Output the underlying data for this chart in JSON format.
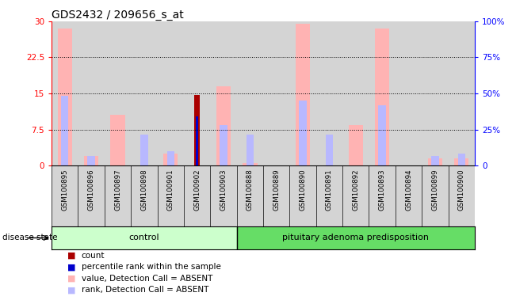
{
  "title": "GDS2432 / 209656_s_at",
  "samples": [
    "GSM100895",
    "GSM100896",
    "GSM100897",
    "GSM100898",
    "GSM100901",
    "GSM100902",
    "GSM100903",
    "GSM100888",
    "GSM100889",
    "GSM100890",
    "GSM100891",
    "GSM100892",
    "GSM100893",
    "GSM100894",
    "GSM100899",
    "GSM100900"
  ],
  "value_absent": [
    28.5,
    2.0,
    10.5,
    0.0,
    2.5,
    0.0,
    16.5,
    0.5,
    0.0,
    29.5,
    0.0,
    8.5,
    28.5,
    0.0,
    1.5,
    1.5
  ],
  "rank_absent": [
    14.5,
    2.0,
    0.0,
    6.5,
    3.0,
    0.0,
    8.5,
    6.5,
    0.0,
    13.5,
    6.5,
    0.0,
    12.5,
    0.0,
    2.0,
    2.5
  ],
  "count_val": [
    0,
    0,
    0,
    0,
    0,
    14.7,
    0,
    0,
    0,
    0,
    0,
    0,
    0,
    0,
    0,
    0
  ],
  "percentile_val": [
    0,
    0,
    0,
    0,
    0,
    10.2,
    0,
    0,
    0,
    0,
    0,
    0,
    0,
    0,
    0,
    0
  ],
  "ylim_left": [
    0,
    30
  ],
  "ylim_right": [
    0,
    100
  ],
  "yticks_left": [
    0,
    7.5,
    15,
    22.5,
    30
  ],
  "yticks_right": [
    0,
    25,
    50,
    75,
    100
  ],
  "ytick_labels_left": [
    "0",
    "7.5",
    "15",
    "22.5",
    "30"
  ],
  "ytick_labels_right": [
    "0",
    "25%",
    "50%",
    "75%",
    "100%"
  ],
  "control_samples": 7,
  "label_control": "control",
  "label_disease": "pituitary adenoma predisposition",
  "label_disease_state": "disease state",
  "color_value_absent": "#ffb3b3",
  "color_rank_absent": "#b8b8ff",
  "color_count": "#aa0000",
  "color_percentile": "#0000cc",
  "color_control_bg": "#ccffcc",
  "color_disease_bg": "#66dd66",
  "color_sample_bg": "#d4d4d4",
  "color_chart_bg": "#ffffff",
  "value_bar_width": 0.55,
  "rank_bar_width": 0.28,
  "count_bar_width": 0.22,
  "pct_bar_width": 0.1
}
